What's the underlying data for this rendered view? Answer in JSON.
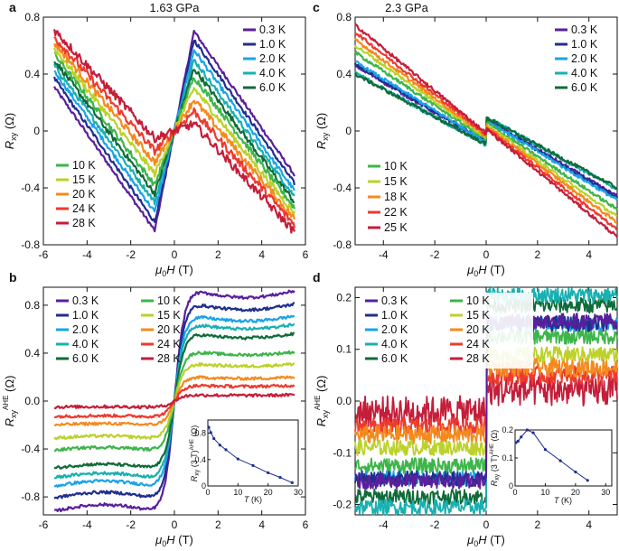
{
  "figure": {
    "panels": [
      {
        "letter": "a",
        "title": "1.63 GPa"
      },
      {
        "letter": "b",
        "title": ""
      },
      {
        "letter": "c",
        "title": "2.3 GPa"
      },
      {
        "letter": "d",
        "title": ""
      }
    ],
    "colors": [
      "#5a1f9c",
      "#1f2e8f",
      "#1aa3e8",
      "#19b0b0",
      "#0f6b3a",
      "#3db54a",
      "#bcd12a",
      "#f48a1e",
      "#ee3a2e",
      "#c41e3a"
    ]
  },
  "chart_data": [
    {
      "panel": "a",
      "type": "line",
      "title": "1.63 GPa",
      "xlabel": "μ0H (T)",
      "ylabel": "Rxy (Ω)",
      "xlim": [
        -6,
        6
      ],
      "ylim": [
        -0.8,
        0.8
      ],
      "xticks": [
        "-6",
        "-4",
        "-2",
        "0",
        "2",
        "4",
        "6"
      ],
      "yticks": [
        "-0.8",
        "-0.4",
        "0",
        "0.4",
        "0.8"
      ],
      "legend_top_right": [
        "0.3 K",
        "1.0 K",
        "2.0 K",
        "4.0 K",
        "6.0 K"
      ],
      "legend_bottom_left": [
        "10 K",
        "15 K",
        "20 K",
        "24 K",
        "28 K"
      ],
      "series": [
        {
          "name": "0.3 K",
          "R_plus5_5": -0.31,
          "R_peak_at_0_9": 0.7
        },
        {
          "name": "1.0 K",
          "R_plus5_5": -0.37,
          "R_peak_at_0_9": 0.64
        },
        {
          "name": "2.0 K",
          "R_plus5_5": -0.42,
          "R_peak_at_0_9": 0.57
        },
        {
          "name": "4.0 K",
          "R_plus5_5": -0.46,
          "R_peak_at_0_9": 0.5
        },
        {
          "name": "6.0 K",
          "R_plus5_5": -0.5,
          "R_peak_at_0_9": 0.44
        },
        {
          "name": "10 K",
          "R_plus5_5": -0.54,
          "R_peak_at_0_9": 0.38
        },
        {
          "name": "15 K",
          "R_plus5_5": -0.58,
          "R_peak_at_0_9": 0.3
        },
        {
          "name": "20 K",
          "R_plus5_5": -0.62,
          "R_peak_at_0_9": 0.22
        },
        {
          "name": "24 K",
          "R_plus5_5": -0.66,
          "R_peak_at_0_9": 0.14
        },
        {
          "name": "28 K",
          "R_plus5_5": -0.71,
          "R_peak_at_0_9": 0.05
        }
      ]
    },
    {
      "panel": "b",
      "type": "line",
      "xlabel": "μ0H (T)",
      "ylabel": "Rxy AHE (Ω)",
      "xlim": [
        -6,
        6
      ],
      "ylim": [
        -0.95,
        0.95
      ],
      "xticks": [
        "-6",
        "-4",
        "-2",
        "0",
        "2",
        "4",
        "6"
      ],
      "yticks": [
        "-0.8",
        "-0.4",
        "0.0",
        "0.4",
        "0.8"
      ],
      "legend": [
        "0.3 K",
        "1.0 K",
        "2.0 K",
        "4.0 K",
        "6.0 K",
        "10 K",
        "15 K",
        "20 K",
        "24 K",
        "28 K"
      ],
      "series": [
        {
          "name": "0.3 K",
          "saturation": 0.92
        },
        {
          "name": "1.0 K",
          "saturation": 0.81
        },
        {
          "name": "2.0 K",
          "saturation": 0.71
        },
        {
          "name": "4.0 K",
          "saturation": 0.64
        },
        {
          "name": "6.0 K",
          "saturation": 0.56
        },
        {
          "name": "10 K",
          "saturation": 0.41
        },
        {
          "name": "15 K",
          "saturation": 0.31
        },
        {
          "name": "20 K",
          "saturation": 0.2
        },
        {
          "name": "24 K",
          "saturation": 0.13
        },
        {
          "name": "28 K",
          "saturation": 0.05
        }
      ],
      "inset": {
        "xlabel": "T (K)",
        "ylabel": "Rxy (3 T) AHE (Ω)",
        "xlim": [
          0,
          30
        ],
        "ylim": [
          0,
          1.0
        ],
        "xticks": [
          "0",
          "10",
          "20",
          "30"
        ],
        "yticks": [
          "0",
          "0.4",
          "0.8"
        ],
        "T": [
          0.3,
          1,
          2,
          4,
          6,
          10,
          15,
          20,
          24,
          28
        ],
        "R": [
          0.89,
          0.81,
          0.72,
          0.62,
          0.55,
          0.41,
          0.31,
          0.2,
          0.13,
          0.05
        ]
      }
    },
    {
      "panel": "c",
      "type": "line",
      "title": "2.3 GPa",
      "xlabel": "μ0H (T)",
      "ylabel": "Rxy (Ω)",
      "xlim": [
        -5.1,
        5.1
      ],
      "ylim": [
        -0.8,
        0.8
      ],
      "xticks": [
        "-4",
        "-2",
        "0",
        "2",
        "4"
      ],
      "yticks": [
        "-0.8",
        "-0.4",
        "0",
        "0.4",
        "0.8"
      ],
      "legend_top_right": [
        "0.3 K",
        "1.0 K",
        "2.0 K",
        "4.0 K",
        "6.0 K"
      ],
      "legend_bottom_left": [
        "10 K",
        "15 K",
        "18 K",
        "22 K",
        "25 K"
      ],
      "series": [
        {
          "name": "0.3 K",
          "R_plus5": -0.62
        },
        {
          "name": "1.0 K",
          "R_plus5": -0.62
        },
        {
          "name": "2.0 K",
          "R_plus5": -0.63
        },
        {
          "name": "4.0 K",
          "R_plus5": -0.6
        },
        {
          "name": "6.0 K",
          "R_plus5": -0.58
        },
        {
          "name": "10 K",
          "R_plus5": -0.66
        },
        {
          "name": "15 K",
          "R_plus5": -0.68
        },
        {
          "name": "18 K",
          "R_plus5": -0.7
        },
        {
          "name": "22 K",
          "R_plus5": -0.73
        },
        {
          "name": "25 K",
          "R_plus5": -0.76
        }
      ]
    },
    {
      "panel": "d",
      "type": "line",
      "xlabel": "μ0H (T)",
      "ylabel": "Rxy AHE (Ω)",
      "xlim": [
        -5.1,
        5.1
      ],
      "ylim": [
        -0.22,
        0.22
      ],
      "xticks": [
        "-4",
        "-2",
        "0",
        "2",
        "4"
      ],
      "yticks": [
        "-0.2",
        "-0.1",
        "0.0",
        "0.1",
        "0.2"
      ],
      "legend": [
        "0.3 K",
        "1.0 K",
        "2.0 K",
        "4.0 K",
        "6.0 K",
        "10 K",
        "15 K",
        "20 K",
        "24 K",
        "28 K"
      ],
      "series": [
        {
          "name": "0.3 K",
          "saturation": 0.155
        },
        {
          "name": "1.0 K",
          "saturation": 0.15
        },
        {
          "name": "2.0 K",
          "saturation": 0.15
        },
        {
          "name": "4.0 K",
          "saturation": 0.205
        },
        {
          "name": "6.0 K",
          "saturation": 0.185
        },
        {
          "name": "10 K",
          "saturation": 0.125
        },
        {
          "name": "15 K",
          "saturation": 0.09
        },
        {
          "name": "20 K",
          "saturation": 0.065
        },
        {
          "name": "24 K",
          "saturation": 0.05
        },
        {
          "name": "28 K",
          "saturation": 0.02
        }
      ],
      "inset": {
        "xlabel": "T (K)",
        "ylabel": "Rxy (3 T) AHE (Ω)",
        "xlim": [
          0,
          32
        ],
        "ylim": [
          0,
          0.2
        ],
        "xticks": [
          "0",
          "10",
          "20",
          "30"
        ],
        "yticks": [
          "0",
          "0.1",
          "0.2"
        ],
        "T": [
          0.3,
          1,
          2,
          4,
          6,
          10,
          15,
          20,
          24
        ],
        "R": [
          0.155,
          0.16,
          0.175,
          0.2,
          0.19,
          0.13,
          0.09,
          0.05,
          0.02
        ]
      }
    }
  ]
}
